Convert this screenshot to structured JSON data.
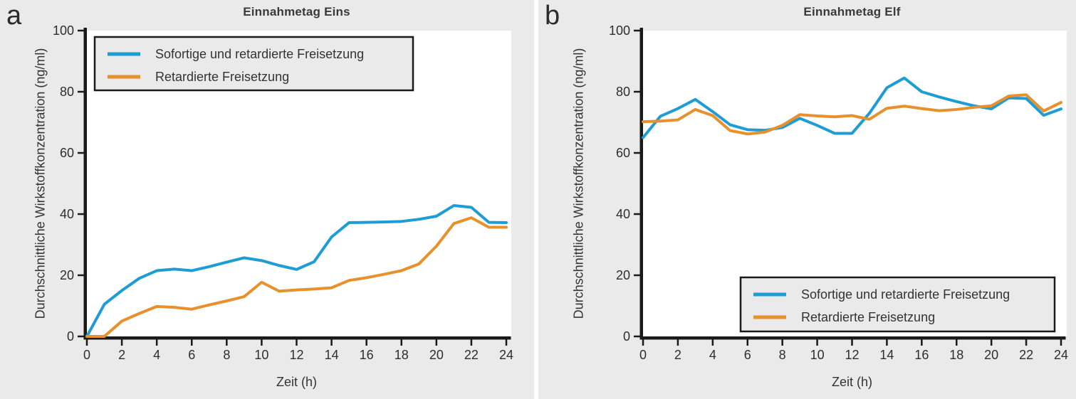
{
  "figure": {
    "background": "#ffffff",
    "panel_background": "#eaeaea",
    "plot_background": "#ffffff",
    "axis_color": "#1a1a1a",
    "text_color": "#333333",
    "series_blue": "#1e9cd6",
    "series_orange": "#e8902c"
  },
  "chart_data": [
    {
      "type": "line",
      "panel_label": "a",
      "title": "Einnahmetag Eins",
      "xlabel": "Zeit (h)",
      "ylabel": "Durchschnittliche Wirkstoffkonzentration (ng/ml)",
      "xlim": [
        0,
        24
      ],
      "ylim": [
        0,
        100
      ],
      "xticks": [
        0,
        2,
        4,
        6,
        8,
        10,
        12,
        14,
        16,
        18,
        20,
        22,
        24
      ],
      "yticks": [
        0,
        20,
        40,
        60,
        80,
        100
      ],
      "grid": false,
      "legend_position": "top-left",
      "x": [
        0,
        1,
        2,
        3,
        4,
        5,
        6,
        7,
        8,
        9,
        10,
        11,
        12,
        13,
        14,
        15,
        16,
        17,
        18,
        19,
        20,
        21,
        22,
        23,
        24
      ],
      "series": [
        {
          "name": "Sofortige und retardierte Freisetzung",
          "color": "#1e9cd6",
          "values": [
            0,
            10.5,
            15,
            19,
            21.5,
            22,
            21.5,
            22.8,
            24.3,
            25.7,
            24.8,
            23.2,
            21.9,
            24.4,
            32.5,
            37.2,
            37.3,
            37.4,
            37.6,
            38.3,
            39.3,
            42.8,
            42.2,
            37.3,
            37.2
          ]
        },
        {
          "name": "Retardierte Freisetzung",
          "color": "#e8902c",
          "values": [
            0,
            0,
            5,
            7.5,
            9.8,
            9.5,
            8.9,
            10.3,
            11.6,
            13,
            17.7,
            14.8,
            15.2,
            15.5,
            15.9,
            18.3,
            19.2,
            20.3,
            21.5,
            23.7,
            29.5,
            36.9,
            38.8,
            35.7,
            35.7
          ]
        }
      ]
    },
    {
      "type": "line",
      "panel_label": "b",
      "title": "Einnahmetag Elf",
      "xlabel": "Zeit (h)",
      "ylabel": "Durchschnittliche Wirkstoffkonzentration (ng/ml)",
      "xlim": [
        0,
        24
      ],
      "ylim": [
        0,
        100
      ],
      "xticks": [
        0,
        2,
        4,
        6,
        8,
        10,
        12,
        14,
        16,
        18,
        20,
        22,
        24
      ],
      "yticks": [
        0,
        20,
        40,
        60,
        80,
        100
      ],
      "grid": false,
      "legend_position": "bottom-right",
      "x": [
        0,
        1,
        2,
        3,
        4,
        5,
        6,
        7,
        8,
        9,
        10,
        11,
        12,
        13,
        14,
        15,
        16,
        17,
        18,
        19,
        20,
        21,
        22,
        23,
        24
      ],
      "series": [
        {
          "name": "Sofortige und retardierte Freisetzung",
          "color": "#1e9cd6",
          "values": [
            65,
            72,
            74.5,
            77.5,
            73.5,
            69.2,
            67.6,
            67.4,
            68.3,
            71.3,
            69,
            66.4,
            66.4,
            73,
            81.3,
            84.5,
            80,
            78.3,
            76.8,
            75.4,
            74.4,
            78,
            77.8,
            72.3,
            74.4
          ]
        },
        {
          "name": "Retardierte Freisetzung",
          "color": "#e8902c",
          "values": [
            70.2,
            70.4,
            70.8,
            74.2,
            72.2,
            67.3,
            66.2,
            66.8,
            69,
            72.5,
            72.1,
            71.8,
            72.2,
            71,
            74.6,
            75.3,
            74.5,
            73.8,
            74.2,
            74.9,
            75.4,
            78.6,
            79,
            73.7,
            76.5
          ]
        }
      ]
    }
  ]
}
